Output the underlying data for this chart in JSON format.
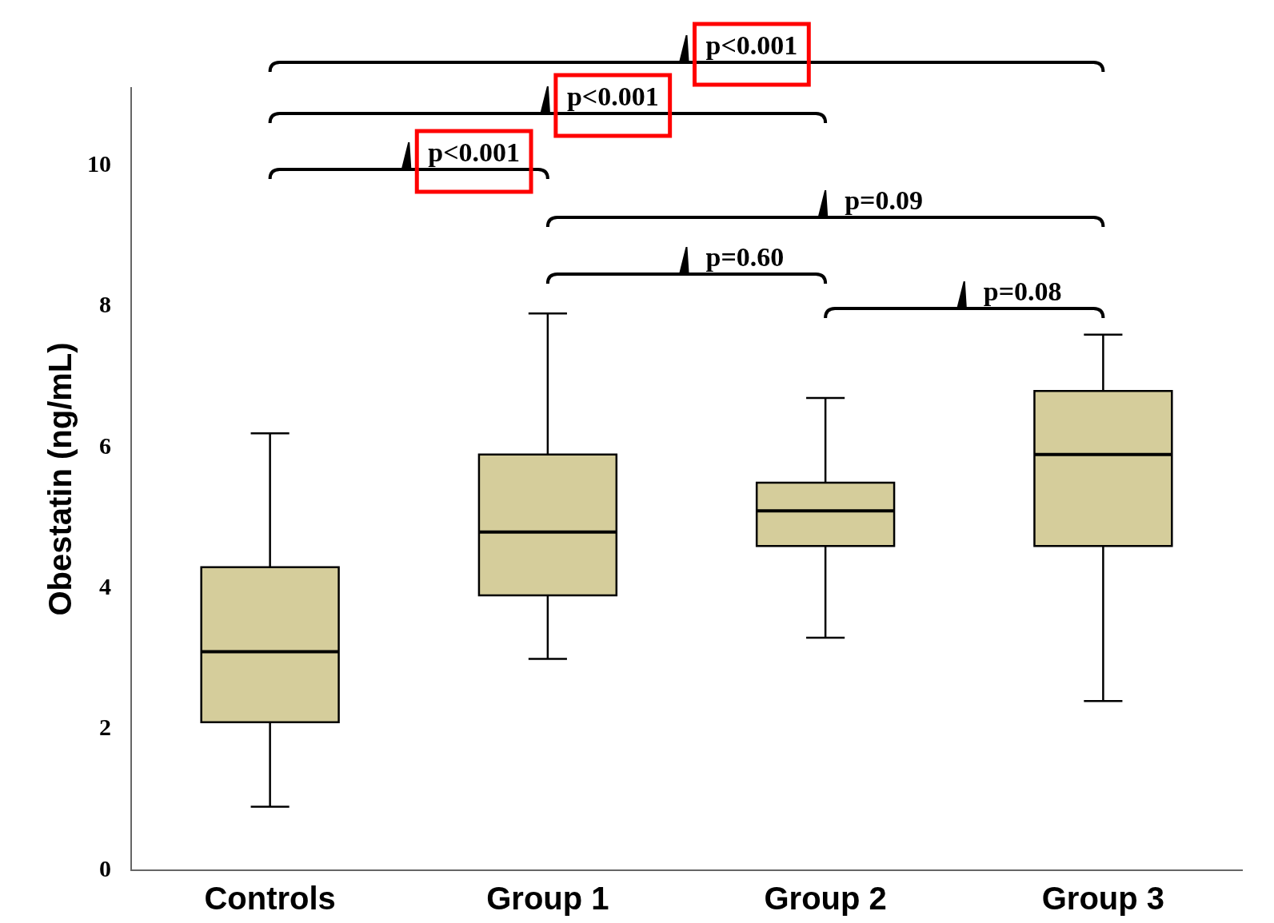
{
  "chart_data": {
    "type": "box",
    "ylabel": "Obestatin (ng/mL)",
    "categories": [
      "Controls",
      "Group 1",
      "Group 2",
      "Group 3"
    ],
    "series": [
      {
        "color": "#d5cd9b",
        "boxes": [
          {
            "low": 0.9,
            "q1": 2.1,
            "median": 3.1,
            "q3": 4.3,
            "high": 6.2
          },
          {
            "low": 3.0,
            "q1": 3.9,
            "median": 4.8,
            "q3": 5.9,
            "high": 7.9
          },
          {
            "low": 3.3,
            "q1": 4.6,
            "median": 5.1,
            "q3": 5.5,
            "high": 6.7
          },
          {
            "low": 2.4,
            "q1": 4.6,
            "median": 5.9,
            "q3": 6.8,
            "high": 7.6
          }
        ]
      }
    ],
    "ylim": [
      0,
      11.1
    ],
    "yticks": [
      0,
      2,
      4,
      6,
      8,
      10
    ],
    "grid": false,
    "legend": false,
    "annotations": [
      "p<0.001",
      "p<0.001",
      "p<0.001",
      "p=0.09",
      "p=0.60",
      "p=0.08"
    ]
  }
}
